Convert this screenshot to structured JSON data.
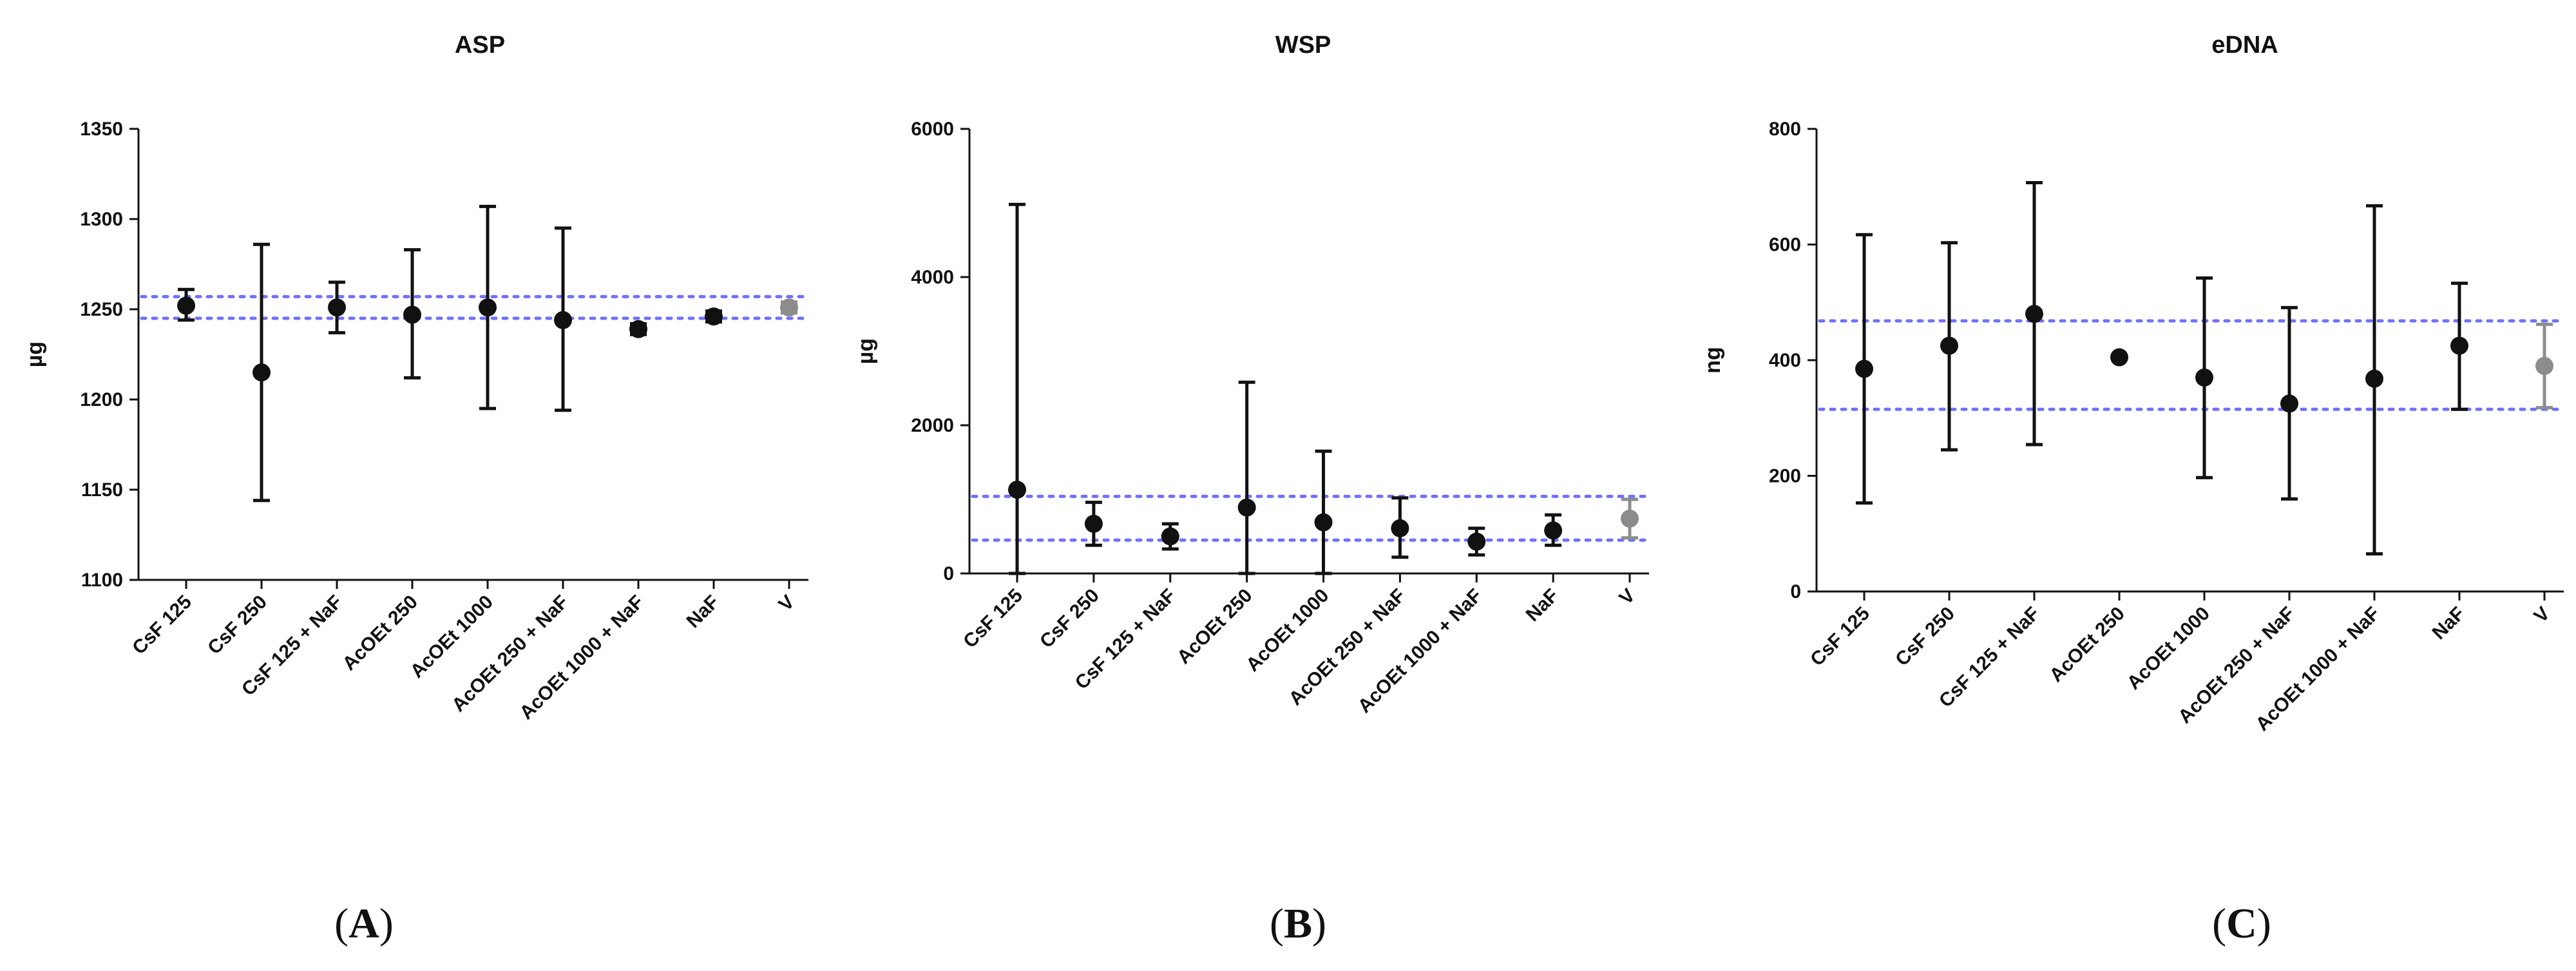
{
  "figure": {
    "panel_labels": [
      {
        "open": "(",
        "letter": "A",
        "close": ")"
      },
      {
        "open": "(",
        "letter": "B",
        "close": ")"
      },
      {
        "open": "(",
        "letter": "C",
        "close": ")"
      }
    ],
    "colors": {
      "point": "#111111",
      "control_point": "#8c8c8c",
      "reference_line": "#7070ff",
      "axis": "#111111"
    }
  },
  "chart_data": [
    {
      "type": "scatter",
      "title": "ASP",
      "ylabel": "µg",
      "xlabel": "",
      "ylim": [
        1100,
        1350
      ],
      "yticks": [
        1100,
        1150,
        1200,
        1250,
        1300,
        1350
      ],
      "categories": [
        "CsF 125",
        "CsF 250",
        "CsF 125 + NaF",
        "AcOEt 250",
        "AcOEt 1000",
        "AcOEt 250 + NaF",
        "AcOEt 1000 + NaF",
        "NaF",
        "V"
      ],
      "values": [
        1252,
        1215,
        1251,
        1247,
        1251,
        1244,
        1239,
        1246,
        1251
      ],
      "err_low": [
        1244,
        1144,
        1237,
        1212,
        1195,
        1194,
        1236,
        1243,
        1248
      ],
      "err_high": [
        1261,
        1286,
        1265,
        1283,
        1307,
        1295,
        1242,
        1249,
        1254
      ],
      "reference_lines": [
        1245,
        1257
      ],
      "control_category": "V"
    },
    {
      "type": "scatter",
      "title": "WSP",
      "ylabel": "µg",
      "xlabel": "",
      "ylim": [
        0,
        6000
      ],
      "yticks": [
        0,
        2000,
        4000,
        6000
      ],
      "categories": [
        "CsF 125",
        "CsF 250",
        "CsF 125 + NaF",
        "AcOEt 250",
        "AcOEt 1000",
        "AcOEt 250 + NaF",
        "AcOEt 1000 + NaF",
        "NaF",
        "V"
      ],
      "values": [
        1130,
        670,
        500,
        890,
        690,
        610,
        430,
        580,
        740
      ],
      "err_low": [
        0,
        380,
        330,
        0,
        0,
        220,
        250,
        380,
        480
      ],
      "err_high": [
        4980,
        960,
        670,
        2580,
        1650,
        1020,
        610,
        790,
        1000
      ],
      "reference_lines": [
        450,
        1040
      ],
      "control_category": "V"
    },
    {
      "type": "scatter",
      "title": "eDNA",
      "ylabel": "ng",
      "xlabel": "",
      "ylim": [
        0,
        800
      ],
      "yticks": [
        0,
        200,
        400,
        600,
        800
      ],
      "categories": [
        "CsF 125",
        "CsF 250",
        "CsF 125 + NaF",
        "AcOEt 250",
        "AcOEt 1000",
        "AcOEt 250 + NaF",
        "AcOEt 1000 + NaF",
        "NaF",
        "V"
      ],
      "values": [
        385,
        425,
        480,
        405,
        370,
        325,
        368,
        425,
        390
      ],
      "err_low": [
        153,
        245,
        254,
        405,
        197,
        160,
        65,
        315,
        318
      ],
      "err_high": [
        617,
        603,
        707,
        405,
        542,
        491,
        667,
        533,
        462
      ],
      "reference_lines": [
        315,
        468
      ],
      "control_category": "V"
    }
  ]
}
